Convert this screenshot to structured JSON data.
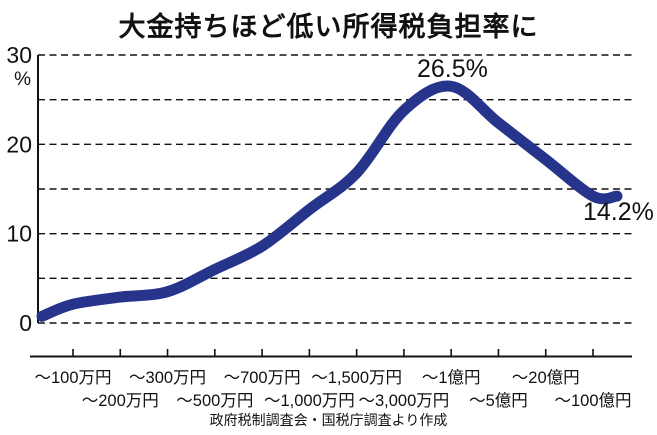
{
  "chart_data": {
    "type": "line",
    "title": "大金持ちほど低い所得税負担率に",
    "categories": [
      "～100万円",
      "～200万円",
      "～300万円",
      "～500万円",
      "～700万円",
      "～1,000万円",
      "～1,500万円",
      "～3,000万円",
      "～1億円",
      "～5億円",
      "～20億円",
      "～100億円"
    ],
    "values": [
      2.1,
      2.9,
      3.5,
      6.0,
      8.6,
      12.7,
      16.8,
      23.8,
      26.5,
      22.4,
      18.3,
      14.2
    ],
    "xlabel": "",
    "ylabel": "%",
    "ylim": [
      0,
      30
    ],
    "yticks": [
      30,
      20,
      10,
      0
    ],
    "grid_values": [
      0,
      5,
      10,
      15,
      20,
      25,
      30
    ],
    "grid_style": "dashed-horizontal",
    "legend": "none",
    "line_color": "#27348b",
    "axis_color": "#111111",
    "line_extends_to_plot_edges": true,
    "edge_start_value": 0.75,
    "edge_end_value": 14.2,
    "annotations": [
      {
        "text": "26.5%",
        "category": "～1億円",
        "value": 26.5
      },
      {
        "text": "14.2%",
        "category": "～100億円",
        "value": 14.2
      }
    ],
    "source": "政府税制調査会・国税庁調査より作成"
  }
}
